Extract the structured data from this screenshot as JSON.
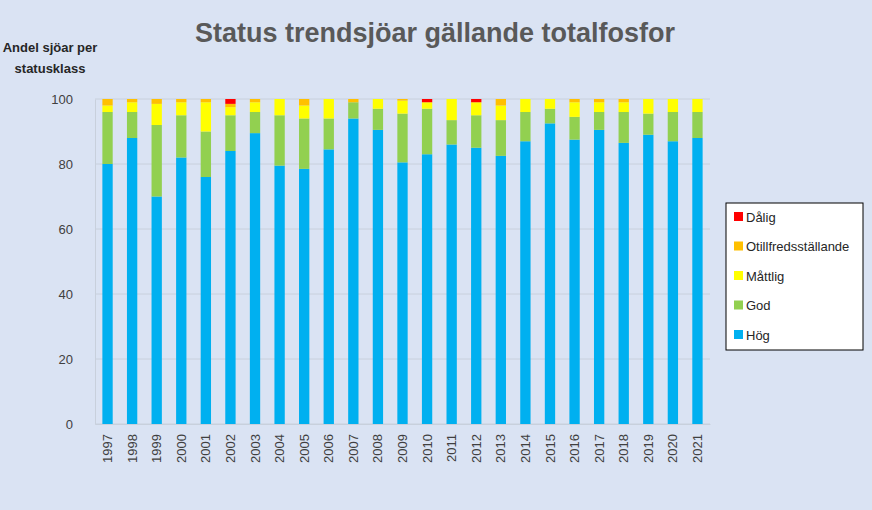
{
  "chart_data": {
    "type": "bar",
    "stacked": true,
    "title": "Status trendsjöar gällande totalfosfor",
    "y_label": "Andel sjöar per statusklass",
    "categories": [
      "1997",
      "1998",
      "1999",
      "2000",
      "2001",
      "2002",
      "2003",
      "2004",
      "2005",
      "2006",
      "2007",
      "2008",
      "2009",
      "2010",
      "2011",
      "2012",
      "2013",
      "2014",
      "2015",
      "2016",
      "2017",
      "2018",
      "2019",
      "2020",
      "2021"
    ],
    "series": [
      {
        "name": "Hög",
        "color": "#00b0f0",
        "values": [
          80,
          88,
          70,
          82,
          76,
          84,
          89.5,
          79.5,
          78.5,
          84.5,
          94,
          90.5,
          80.5,
          83,
          86,
          85,
          82.5,
          87,
          92.5,
          87.5,
          90.5,
          86.5,
          89,
          87,
          88
        ]
      },
      {
        "name": "God",
        "color": "#92d050",
        "values": [
          16,
          8,
          22,
          13,
          14,
          11,
          6.5,
          15.5,
          15.5,
          9.5,
          5,
          6.5,
          15,
          14,
          7.5,
          10,
          11,
          9,
          4.5,
          7,
          5.5,
          9.5,
          6.5,
          9,
          8
        ]
      },
      {
        "name": "Måttlig",
        "color": "#ffff00",
        "values": [
          2,
          3,
          6.5,
          4,
          9,
          2.5,
          3,
          5,
          4,
          6,
          0,
          3,
          4,
          2,
          6.5,
          4,
          4.5,
          4,
          3,
          4.5,
          3,
          3,
          4.5,
          4,
          4
        ]
      },
      {
        "name": "Otillfredsställande",
        "color": "#ffc000",
        "values": [
          2,
          1,
          1.5,
          1,
          1,
          1,
          1,
          0,
          2,
          0,
          1,
          0,
          0.5,
          0,
          0,
          0,
          2,
          0,
          0,
          1,
          1,
          1,
          0,
          0,
          0
        ]
      },
      {
        "name": "Dålig",
        "color": "#ff0000",
        "values": [
          0,
          0,
          0,
          0,
          0,
          1.5,
          0,
          0,
          0,
          0,
          0,
          0,
          0,
          1,
          0,
          1,
          0,
          0,
          0,
          0,
          0,
          0,
          0,
          0,
          0
        ]
      }
    ],
    "ylim": [
      0,
      100
    ],
    "yticks": [
      0,
      20,
      40,
      60,
      80,
      100
    ],
    "grid": true,
    "legend": "right"
  }
}
